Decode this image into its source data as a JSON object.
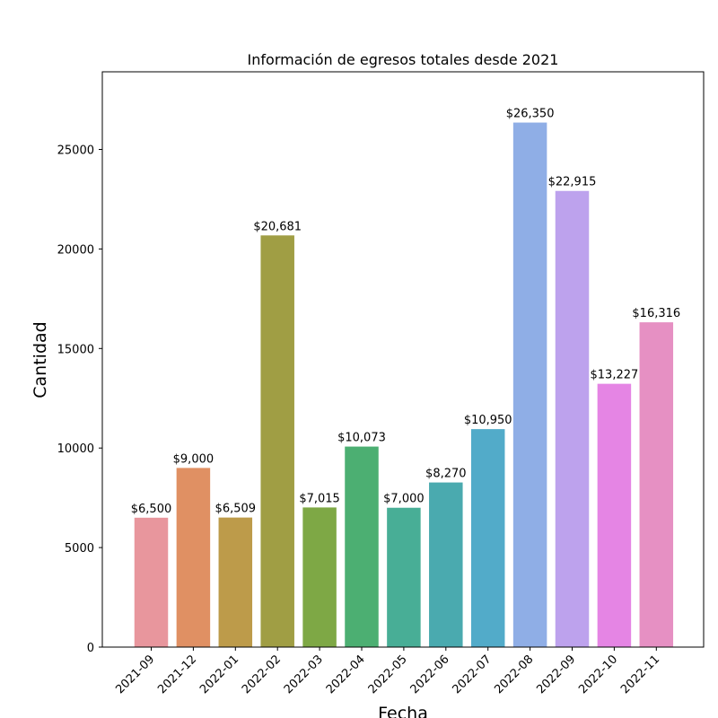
{
  "chart_data": {
    "type": "bar",
    "title": "Información de egresos  totales  desde 2021",
    "xlabel": "Fecha",
    "ylabel": "Cantidad",
    "ylim": [
      0,
      28900
    ],
    "yticks": [
      0,
      5000,
      10000,
      15000,
      20000,
      25000
    ],
    "yticklabels": [
      "0",
      "5000",
      "10000",
      "15000",
      "20000",
      "25000"
    ],
    "categories": [
      "2021-09",
      "2021-12",
      "2022-01",
      "2022-02",
      "2022-03",
      "2022-04",
      "2022-05",
      "2022-06",
      "2022-07",
      "2022-08",
      "2022-09",
      "2022-10",
      "2022-11"
    ],
    "values": [
      6500,
      9000,
      6509,
      20681,
      7015,
      10073,
      7000,
      8270,
      10950,
      26350,
      22915,
      13227,
      16316
    ],
    "value_labels": [
      "$6,500",
      "$9,000",
      "$6,509",
      "$20,681",
      "$7,015",
      "$10,073",
      "$7,000",
      "$8,270",
      "$10,950",
      "$26,350",
      "$22,915",
      "$13,227",
      "$16,316"
    ],
    "colors": [
      "#e8969d",
      "#e09063",
      "#bd9b4a",
      "#a09e44",
      "#7ea845",
      "#4caf72",
      "#48ae96",
      "#4aaaaf",
      "#52abc9",
      "#8faee6",
      "#bda2ed",
      "#e585e4",
      "#e690c3"
    ],
    "grid": false,
    "legend": "none"
  }
}
